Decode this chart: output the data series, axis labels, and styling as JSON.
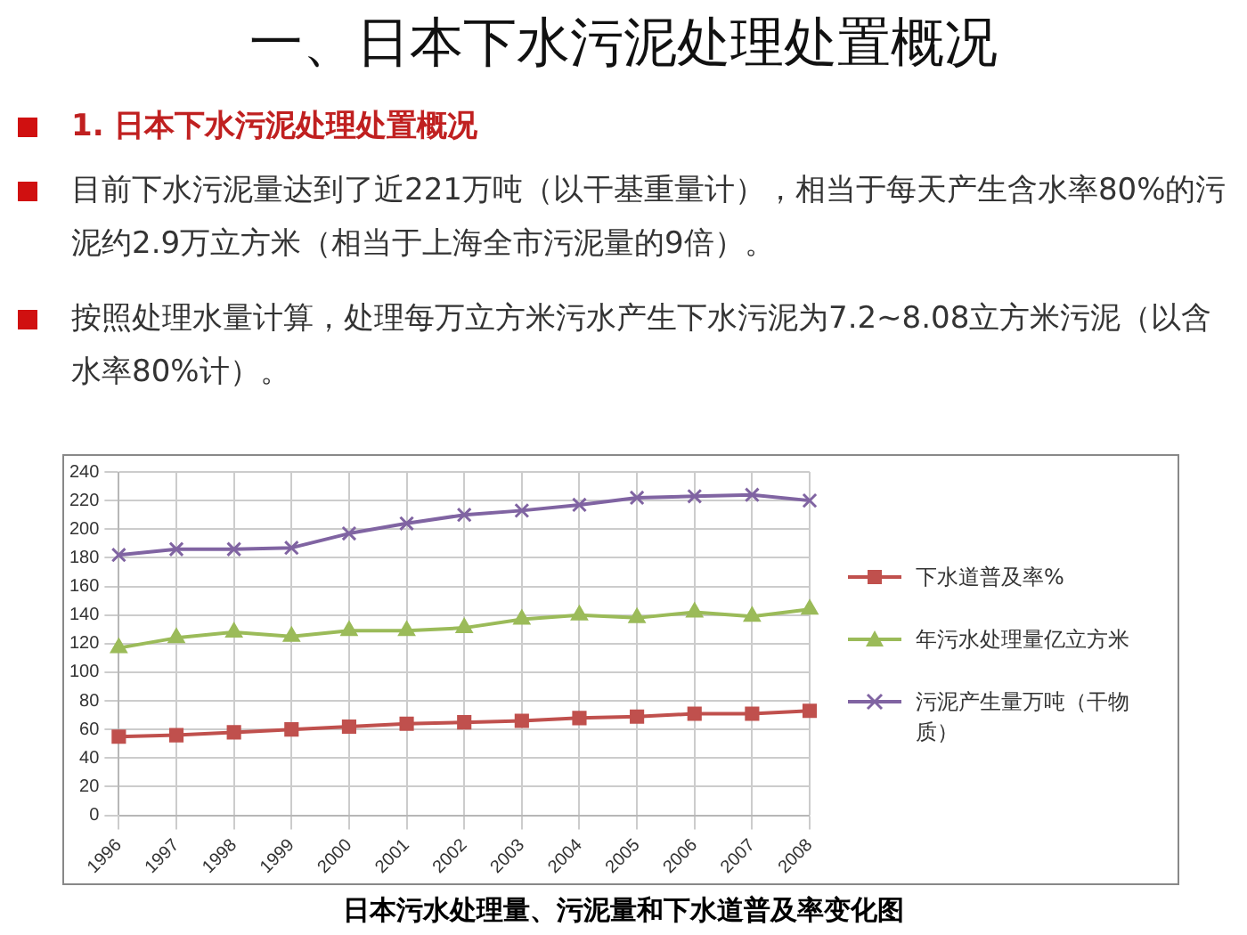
{
  "chart_data": {
    "type": "line",
    "title": "一、日本下水污泥处理处置概况",
    "subtitle": "1. 日本下水污泥处理处置概况",
    "annotations": [
      "目前下水污泥量达到了近221万吨（以干基重量计），相当于每天产生含水率80%的污泥约2.9万立方米（相当于上海全市污泥量的9倍）。",
      "按照处理水量计算，处理每万立方米污水产生下水污泥为7.2~8.08立方米污泥（以含水率80%计）。",
      "日本污水处理量、污泥量和下水道普及率变化图"
    ],
    "categories": [
      "1996",
      "1997",
      "1998",
      "1999",
      "2000",
      "2001",
      "2002",
      "2003",
      "2004",
      "2005",
      "2006",
      "2007",
      "2008"
    ],
    "series": [
      {
        "name": "下水道普及率%",
        "color": "#c0504d",
        "marker": "square",
        "values": [
          55,
          56,
          58,
          60,
          62,
          64,
          65,
          66,
          68,
          69,
          71,
          71,
          73
        ]
      },
      {
        "name": "年污水处理量亿立方米",
        "color": "#9bbb59",
        "marker": "triangle",
        "values": [
          117,
          124,
          128,
          125,
          129,
          129,
          131,
          137,
          140,
          138,
          142,
          139,
          144
        ]
      },
      {
        "name": "污泥产生量万吨（干物质）",
        "color": "#8064a2",
        "marker": "cross",
        "values": [
          182,
          186,
          186,
          187,
          197,
          204,
          210,
          213,
          217,
          222,
          223,
          224,
          220
        ]
      }
    ],
    "ylim": [
      0,
      240
    ],
    "yticks": [
      0,
      20,
      40,
      60,
      80,
      100,
      120,
      140,
      160,
      180,
      200,
      220,
      240
    ],
    "grid": true,
    "legend": "right",
    "line_style": "solid"
  }
}
